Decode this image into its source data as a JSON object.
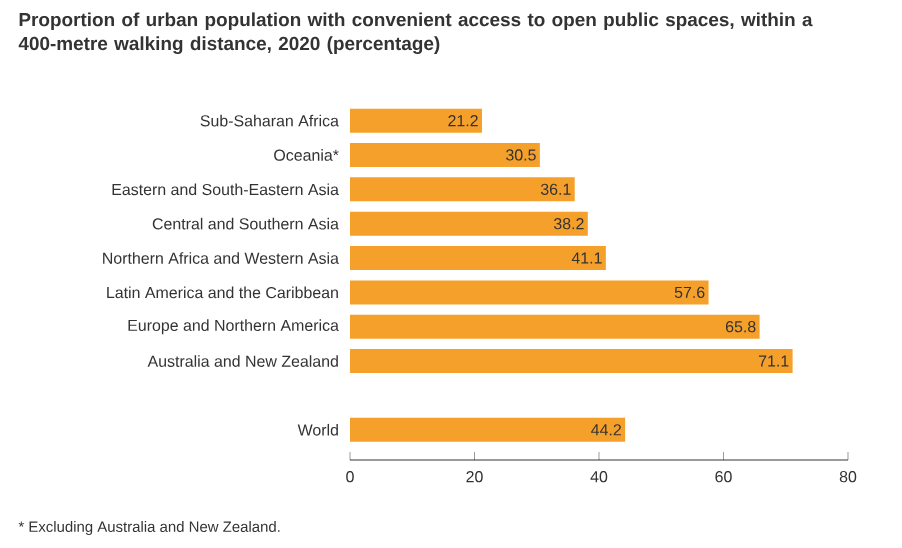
{
  "chart_data": {
    "type": "bar",
    "orientation": "horizontal",
    "title": "Proportion of urban population with convenient access to open public spaces, within a 400-metre walking distance, 2020 (percentage)",
    "categories": [
      "Sub-Saharan Africa",
      "Oceania*",
      "Eastern and South-Eastern Asia",
      "Central and Southern Asia",
      "Northern Africa and Western Asia",
      "Latin America and the Caribbean",
      "Europe and Northern America",
      "Australia and New Zealand",
      null,
      "World"
    ],
    "values": [
      21.2,
      30.5,
      36.1,
      38.2,
      41.1,
      57.6,
      65.8,
      71.1,
      null,
      44.2
    ],
    "color": "#f5a02a",
    "xlim": [
      0,
      80
    ],
    "xticks": [
      0,
      20,
      40,
      60,
      80
    ],
    "grid": false,
    "data_labels": true,
    "annotations": [
      "* Excluding Australia and New Zealand."
    ]
  }
}
